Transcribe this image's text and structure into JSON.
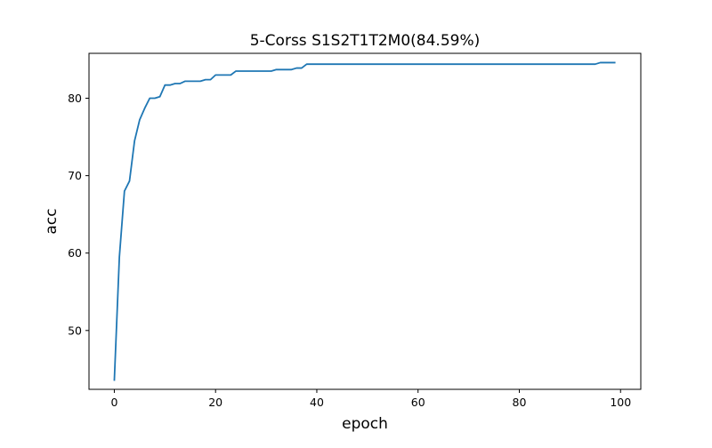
{
  "chart_data": {
    "type": "line",
    "title": "5-Corss S1S2T1T2M0(84.59%)",
    "xlabel": "epoch",
    "ylabel": "acc",
    "xlim": [
      -5,
      104
    ],
    "ylim": [
      42.4,
      85.8
    ],
    "grid": false,
    "legend": "none",
    "xticks": [
      0,
      20,
      40,
      60,
      80,
      100
    ],
    "yticks": [
      50,
      60,
      70,
      80
    ],
    "series": [
      {
        "color": "#1f77b4",
        "x": [
          0,
          1,
          2,
          3,
          4,
          5,
          6,
          7,
          8,
          9,
          10,
          11,
          12,
          13,
          14,
          15,
          16,
          17,
          18,
          19,
          20,
          21,
          22,
          23,
          24,
          25,
          26,
          27,
          28,
          29,
          30,
          31,
          32,
          33,
          34,
          35,
          36,
          37,
          38,
          39,
          40,
          41,
          42,
          43,
          44,
          45,
          46,
          47,
          48,
          49,
          50,
          51,
          52,
          53,
          54,
          55,
          56,
          57,
          58,
          59,
          60,
          61,
          62,
          63,
          64,
          65,
          66,
          67,
          68,
          69,
          70,
          71,
          72,
          73,
          74,
          75,
          76,
          77,
          78,
          79,
          80,
          81,
          82,
          83,
          84,
          85,
          86,
          87,
          88,
          89,
          90,
          91,
          92,
          93,
          94,
          95,
          96,
          97,
          98,
          99
        ],
        "y": [
          43.5,
          59.5,
          68.0,
          69.3,
          74.5,
          77.2,
          78.7,
          80.0,
          80.0,
          80.2,
          81.7,
          81.7,
          81.9,
          81.9,
          82.2,
          82.2,
          82.2,
          82.2,
          82.4,
          82.4,
          83.0,
          83.0,
          83.0,
          83.0,
          83.5,
          83.5,
          83.5,
          83.5,
          83.5,
          83.5,
          83.5,
          83.5,
          83.7,
          83.7,
          83.7,
          83.7,
          83.9,
          83.9,
          84.4,
          84.4,
          84.4,
          84.4,
          84.4,
          84.4,
          84.4,
          84.4,
          84.4,
          84.4,
          84.4,
          84.4,
          84.4,
          84.4,
          84.4,
          84.4,
          84.4,
          84.4,
          84.4,
          84.4,
          84.4,
          84.4,
          84.4,
          84.4,
          84.4,
          84.4,
          84.4,
          84.4,
          84.4,
          84.4,
          84.4,
          84.4,
          84.4,
          84.4,
          84.4,
          84.4,
          84.4,
          84.4,
          84.4,
          84.4,
          84.4,
          84.4,
          84.4,
          84.4,
          84.4,
          84.4,
          84.4,
          84.4,
          84.4,
          84.4,
          84.4,
          84.4,
          84.4,
          84.4,
          84.4,
          84.4,
          84.4,
          84.4,
          84.6,
          84.6,
          84.6,
          84.6
        ]
      }
    ]
  }
}
